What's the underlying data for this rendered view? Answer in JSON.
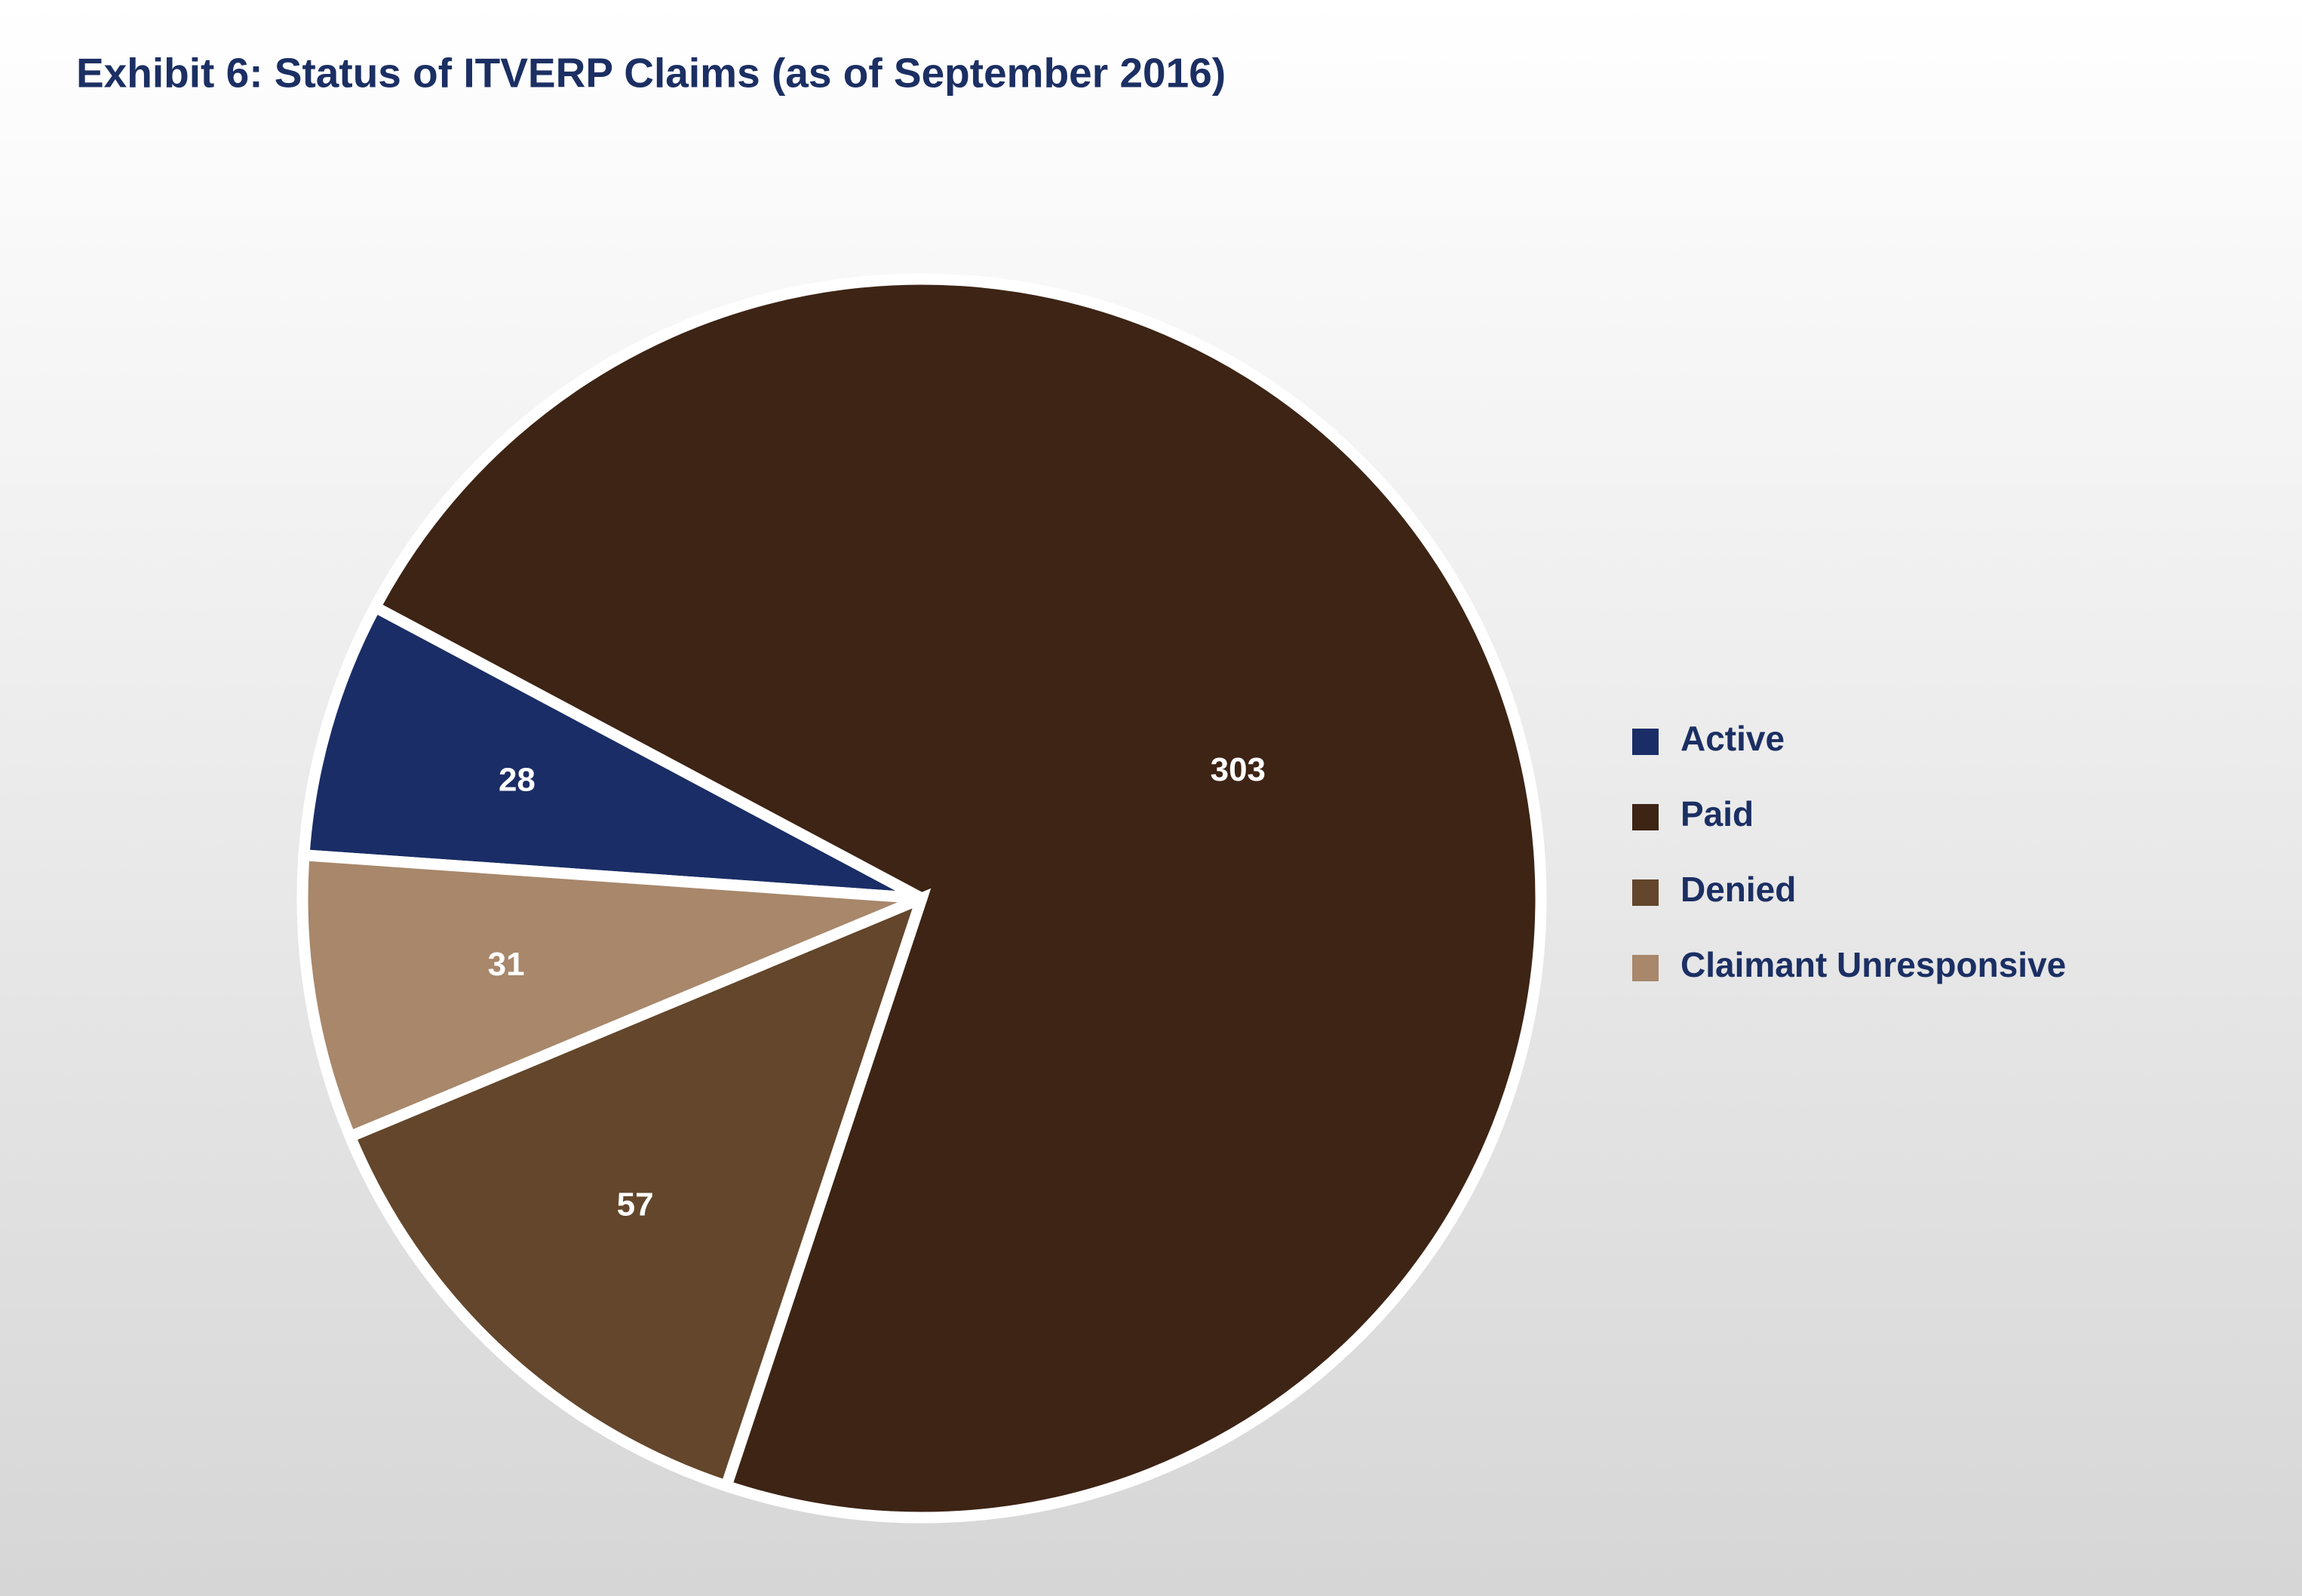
{
  "chart_data": {
    "type": "pie",
    "title": "Exhibit 6: Status of ITVERP Claims (as of September 2016)",
    "categories": [
      "Active",
      "Paid",
      "Denied",
      "Claimant Unresponsive"
    ],
    "values": [
      28,
      303,
      57,
      31
    ],
    "colors": [
      "#1a2d66",
      "#3d2415",
      "#63462b",
      "#a8876b"
    ],
    "legend": "right"
  }
}
